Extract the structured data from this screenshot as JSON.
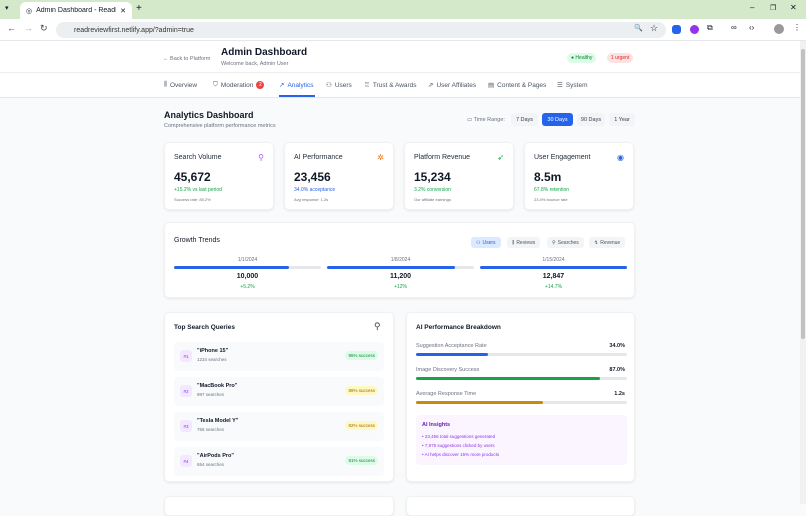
{
  "browser": {
    "tab_title": "Admin Dashboard - ReadRevie",
    "url": "readreviewfirst.netlify.app/?admin=true"
  },
  "header": {
    "back": "← Back to Platform",
    "title": "Admin Dashboard",
    "subtitle": "Welcome back, Admin User",
    "status": "Healthy",
    "urgent": "1 urgent"
  },
  "nav": [
    {
      "label": "Overview",
      "icon": "chart-icon"
    },
    {
      "label": "Moderation",
      "icon": "shield-icon",
      "badge": "2"
    },
    {
      "label": "Analytics",
      "icon": "trend-icon",
      "active": true
    },
    {
      "label": "Users",
      "icon": "users-icon"
    },
    {
      "label": "Trust & Awards",
      "icon": "award-icon"
    },
    {
      "label": "User Affiliates",
      "icon": "external-link-icon"
    },
    {
      "label": "Content & Pages",
      "icon": "file-icon"
    },
    {
      "label": "System",
      "icon": "database-icon"
    }
  ],
  "page": {
    "title": "Analytics Dashboard",
    "subtitle": "Comprehensive platform performance metrics",
    "time_range_label": "Time Range:",
    "ranges": [
      "7 Days",
      "30 Days",
      "90 Days",
      "1 Year"
    ],
    "active_range": "30 Days"
  },
  "stats": [
    {
      "title": "Search Volume",
      "value": "45,672",
      "sub": "+15.2% vs last period",
      "note": "Success rate: 85.2%",
      "icon": "search-icon",
      "color": "#16a34a",
      "icon_color": "#a855f7"
    },
    {
      "title": "AI Performance",
      "value": "23,456",
      "sub": "34.0% acceptance",
      "note": "Avg response: 1.2s",
      "icon": "sparkle-icon",
      "color": "#2563eb",
      "icon_color": "#f97316"
    },
    {
      "title": "Platform Revenue",
      "value": "15,234",
      "sub": "3.2% conversion",
      "note": "Our affiliate earnings",
      "icon": "cursor-icon",
      "color": "#16a34a",
      "icon_color": "#16a34a"
    },
    {
      "title": "User Engagement",
      "value": "8.5m",
      "sub": "67.8% retention",
      "note": "23.4% bounce rate",
      "icon": "eye-icon",
      "color": "#16a34a",
      "icon_color": "#2563eb"
    }
  ],
  "growth": {
    "title": "Growth Trends",
    "tabs": [
      "Users",
      "Reviews",
      "Searches",
      "Revenue"
    ],
    "active_tab": "Users",
    "points": [
      {
        "date": "1/1/2024",
        "value": "10,000",
        "change": "+5.2%",
        "fill": 0.78
      },
      {
        "date": "1/8/2024",
        "value": "11,200",
        "change": "+12%",
        "fill": 0.87
      },
      {
        "date": "1/15/2024",
        "value": "12,847",
        "change": "+14.7%",
        "fill": 1.0
      }
    ]
  },
  "queries": {
    "title": "Top Search Queries",
    "items": [
      {
        "rank": "#1",
        "name": "\"iPhone 15\"",
        "count": "1234 searches",
        "success": "95% success",
        "tone": "green"
      },
      {
        "rank": "#2",
        "name": "\"MacBook Pro\"",
        "count": "987 searches",
        "success": "88% success",
        "tone": "yellow"
      },
      {
        "rank": "#3",
        "name": "\"Tesla Model Y\"",
        "count": "765 searches",
        "success": "82% success",
        "tone": "yellow"
      },
      {
        "rank": "#4",
        "name": "\"AirPods Pro\"",
        "count": "654 searches",
        "success": "91% success",
        "tone": "green"
      }
    ]
  },
  "ai": {
    "title": "AI Performance Breakdown",
    "metrics": [
      {
        "label": "Suggestion Acceptance Rate",
        "value": "34.0%",
        "fill": 0.34,
        "color": "#2563eb"
      },
      {
        "label": "Image Discovery Success",
        "value": "87.0%",
        "fill": 0.87,
        "color": "#16a34a"
      },
      {
        "label": "Average Response Time",
        "value": "1.2s",
        "fill": 0.6,
        "color": "#ca8a04"
      }
    ],
    "insights_title": "AI Insights",
    "insights": [
      "• 23,456 total suggestions generated",
      "• 7,975 suggestions clicked by users",
      "• AI helps discover 15% more products"
    ]
  }
}
